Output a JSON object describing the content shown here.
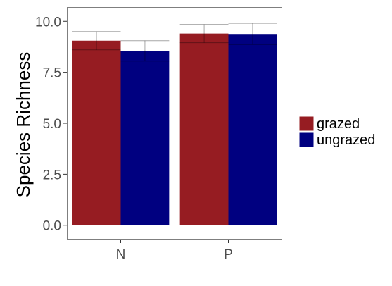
{
  "chart_data": {
    "type": "bar",
    "title": "",
    "xlabel": "",
    "ylabel": "Species Richness",
    "categories": [
      "N",
      "P"
    ],
    "series": [
      {
        "name": "grazed",
        "color": "#961c22",
        "values": [
          9.05,
          9.4
        ],
        "error_upper": [
          9.5,
          9.85
        ],
        "error_lower": [
          8.6,
          8.95
        ]
      },
      {
        "name": "ungrazed",
        "color": "#000080",
        "values": [
          8.55,
          9.38
        ],
        "error_upper": [
          9.05,
          9.9
        ],
        "error_lower": [
          8.05,
          8.86
        ]
      }
    ],
    "ylim": [
      -0.7,
      10.7
    ],
    "yticks": [
      0,
      2.5,
      5,
      7.5,
      10
    ],
    "ytick_labels": [
      "0.0",
      "2.5",
      "5.0",
      "7.5",
      "10.0"
    ],
    "grid": false,
    "legend_position": "right",
    "panel_border": true
  }
}
